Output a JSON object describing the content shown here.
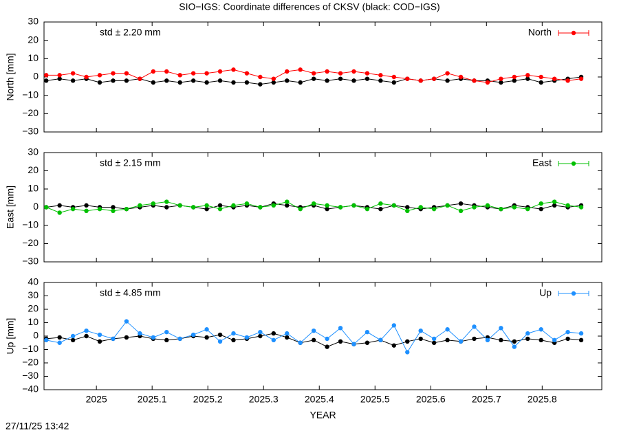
{
  "title": "SIO−IGS: Coordinate differences of CKSV (black: COD−IGS)",
  "timestamp": "27/11/25 13:42",
  "chart_data": [
    {
      "type": "line",
      "ylabel": "North [mm]",
      "annotation": "std ± 2.20 mm",
      "x": [
        2024.91,
        2024.934,
        2024.958,
        2024.982,
        2025.006,
        2025.03,
        2025.054,
        2025.078,
        2025.102,
        2025.126,
        2025.15,
        2025.174,
        2025.198,
        2025.222,
        2025.246,
        2025.27,
        2025.294,
        2025.318,
        2025.342,
        2025.366,
        2025.39,
        2025.414,
        2025.438,
        2025.462,
        2025.486,
        2025.51,
        2025.534,
        2025.558,
        2025.582,
        2025.606,
        2025.63,
        2025.654,
        2025.678,
        2025.702,
        2025.726,
        2025.75,
        2025.774,
        2025.798,
        2025.822,
        2025.846,
        2025.87
      ],
      "xlim": [
        2024.906,
        2025.907
      ],
      "ylim": [
        -30,
        30
      ],
      "yticks": [
        {
          "value": -30,
          "label": "−30"
        },
        {
          "value": -20,
          "label": "−20"
        },
        {
          "value": -10,
          "label": "−10"
        },
        0,
        10,
        20,
        30
      ],
      "series": [
        {
          "color": "#000000",
          "values": [
            -2,
            -1,
            -2,
            -1,
            -3,
            -2,
            -2,
            -1,
            -3,
            -2,
            -3,
            -2,
            -3,
            -2,
            -3,
            -3,
            -4,
            -3,
            -2,
            -3,
            -1,
            -2,
            -1,
            -2,
            -1,
            -2,
            -3,
            -1,
            -2,
            -1,
            -2,
            -1,
            -2,
            -2,
            -3,
            -2,
            -1,
            -3,
            -2,
            -1,
            0
          ]
        },
        {
          "name": "North",
          "color": "#ff0000",
          "values": [
            1,
            1,
            2,
            0,
            1,
            2,
            2,
            -1,
            3,
            3,
            1,
            2,
            2,
            3,
            4,
            2,
            0,
            -1,
            3,
            4,
            2,
            3,
            2,
            3,
            2,
            1,
            0,
            -1,
            -2,
            -1,
            2,
            0,
            -2,
            -3,
            -1,
            0,
            1,
            0,
            -1,
            -2,
            -1
          ]
        }
      ]
    },
    {
      "type": "line",
      "ylabel": "East [mm]",
      "annotation": "std ± 2.15 mm",
      "x": [
        2024.91,
        2024.934,
        2024.958,
        2024.982,
        2025.006,
        2025.03,
        2025.054,
        2025.078,
        2025.102,
        2025.126,
        2025.15,
        2025.174,
        2025.198,
        2025.222,
        2025.246,
        2025.27,
        2025.294,
        2025.318,
        2025.342,
        2025.366,
        2025.39,
        2025.414,
        2025.438,
        2025.462,
        2025.486,
        2025.51,
        2025.534,
        2025.558,
        2025.582,
        2025.606,
        2025.63,
        2025.654,
        2025.678,
        2025.702,
        2025.726,
        2025.75,
        2025.774,
        2025.798,
        2025.822,
        2025.846,
        2025.87
      ],
      "xlim": [
        2024.906,
        2025.907
      ],
      "ylim": [
        -30,
        30
      ],
      "yticks": [
        {
          "value": -30,
          "label": "−30"
        },
        {
          "value": -20,
          "label": "−20"
        },
        {
          "value": -10,
          "label": "−10"
        },
        0,
        10,
        20,
        30
      ],
      "series": [
        {
          "color": "#000000",
          "values": [
            0,
            1,
            0,
            1,
            0,
            0,
            -1,
            0,
            1,
            0,
            1,
            0,
            -1,
            1,
            0,
            1,
            0,
            2,
            1,
            0,
            1,
            -1,
            0,
            1,
            0,
            -1,
            1,
            0,
            -1,
            0,
            1,
            2,
            1,
            0,
            -1,
            1,
            0,
            -1,
            1,
            0,
            1
          ]
        },
        {
          "name": "East",
          "color": "#00c000",
          "values": [
            0,
            -3,
            -1,
            -2,
            -1,
            -2,
            -1,
            1,
            2,
            3,
            1,
            0,
            1,
            -1,
            1,
            2,
            0,
            1,
            3,
            -1,
            2,
            1,
            0,
            1,
            -1,
            2,
            1,
            -2,
            0,
            -1,
            1,
            -2,
            0,
            1,
            -1,
            0,
            -1,
            2,
            3,
            1,
            0
          ]
        }
      ]
    },
    {
      "type": "line",
      "ylabel": "Up [mm]",
      "annotation": "std ± 4.85 mm",
      "xlabel": "YEAR",
      "x": [
        2024.91,
        2024.934,
        2024.958,
        2024.982,
        2025.006,
        2025.03,
        2025.054,
        2025.078,
        2025.102,
        2025.126,
        2025.15,
        2025.174,
        2025.198,
        2025.222,
        2025.246,
        2025.27,
        2025.294,
        2025.318,
        2025.342,
        2025.366,
        2025.39,
        2025.414,
        2025.438,
        2025.462,
        2025.486,
        2025.51,
        2025.534,
        2025.558,
        2025.582,
        2025.606,
        2025.63,
        2025.654,
        2025.678,
        2025.702,
        2025.726,
        2025.75,
        2025.774,
        2025.798,
        2025.822,
        2025.846,
        2025.87
      ],
      "xlim": [
        2024.906,
        2025.907
      ],
      "xticks": [
        2025,
        2025.1,
        2025.2,
        2025.3,
        2025.4,
        2025.5,
        2025.6,
        2025.7,
        2025.8
      ],
      "ylim": [
        -40,
        40
      ],
      "yticks": [
        {
          "value": -40,
          "label": "−40"
        },
        {
          "value": -30,
          "label": "−30"
        },
        {
          "value": -20,
          "label": "−20"
        },
        {
          "value": -10,
          "label": "−10"
        },
        0,
        10,
        20,
        30,
        40
      ],
      "series": [
        {
          "color": "#000000",
          "values": [
            -2,
            -1,
            -3,
            0,
            -4,
            -2,
            -1,
            0,
            -2,
            -3,
            -2,
            0,
            -1,
            1,
            -3,
            -2,
            0,
            2,
            -1,
            -5,
            -3,
            -8,
            -4,
            -6,
            -5,
            -3,
            -7,
            -4,
            -2,
            -5,
            -3,
            -4,
            -2,
            -1,
            -3,
            -4,
            -2,
            -3,
            -5,
            -2,
            -3
          ]
        },
        {
          "name": "Up",
          "color": "#1e90ff",
          "values": [
            -3,
            -5,
            0,
            4,
            1,
            -2,
            11,
            2,
            -1,
            3,
            -2,
            1,
            5,
            -4,
            2,
            -1,
            3,
            -3,
            2,
            -5,
            4,
            -2,
            6,
            -6,
            3,
            -3,
            8,
            -12,
            4,
            -2,
            5,
            -4,
            7,
            -3,
            6,
            -8,
            2,
            5,
            -3,
            3,
            2
          ]
        }
      ]
    }
  ]
}
